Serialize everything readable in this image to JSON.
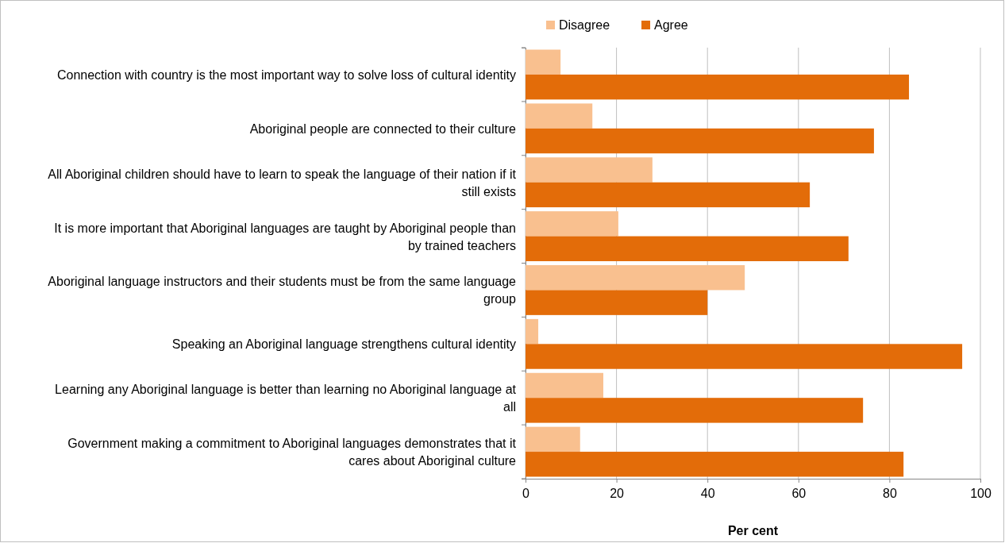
{
  "chart_data": {
    "type": "bar",
    "orientation": "horizontal",
    "xlabel": "Per cent",
    "categories": [
      "Connection with country is the most important way to solve loss of cultural identity",
      "Aboriginal people are connected to their culture",
      "All Aboriginal children should have to learn to speak the language of their nation if it still exists",
      "It is more important that Aboriginal languages are taught by Aboriginal people than by trained teachers",
      "Aboriginal language instructors and their students must be from the same language group",
      "Speaking an Aboriginal language strengthens cultural identity",
      "Learning any Aboriginal language is better than learning no Aboriginal language at all",
      "Government making a commitment to Aboriginal languages demonstrates that it cares about Aboriginal culture"
    ],
    "series": [
      {
        "name": "Disagree",
        "color": "#f9c08f",
        "values": [
          7.7,
          14.7,
          27.9,
          20.4,
          48.2,
          2.8,
          17.1,
          12.0
        ]
      },
      {
        "name": "Agree",
        "color": "#e36c09",
        "values": [
          84.3,
          76.6,
          62.5,
          71.0,
          40.0,
          96.0,
          74.2,
          83.1
        ]
      }
    ],
    "xlim": [
      0,
      100
    ],
    "xticks": [
      0,
      20,
      40,
      60,
      80,
      100
    ],
    "grid": "x",
    "legend": "top"
  }
}
